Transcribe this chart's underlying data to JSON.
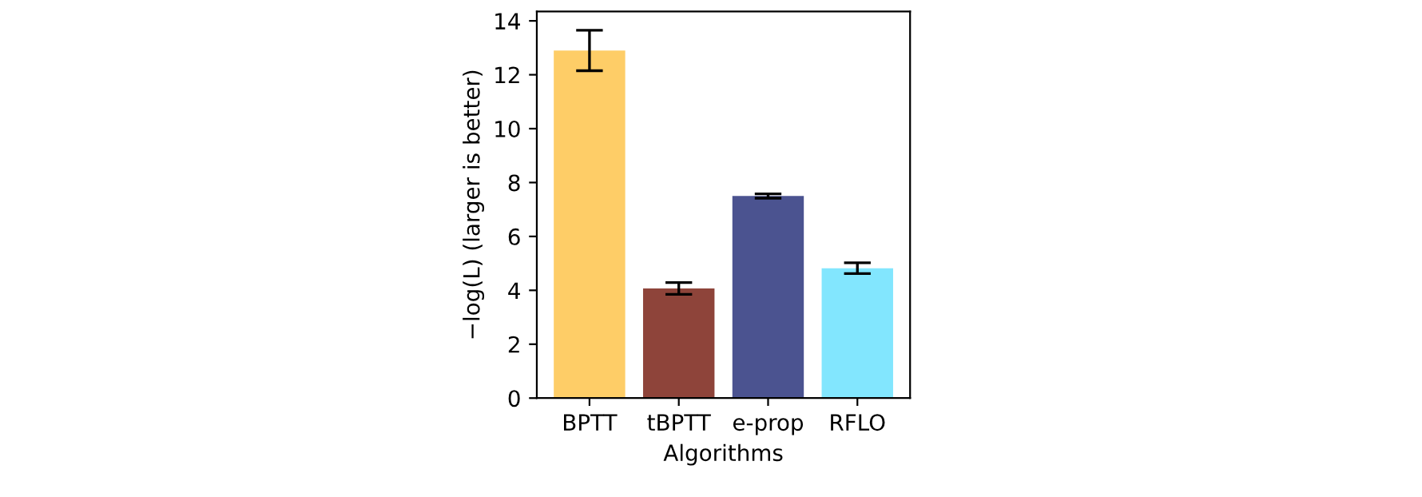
{
  "chart_data": {
    "type": "bar",
    "xlabel": "Algorithms",
    "ylabel": "−log(L) (larger is better)",
    "categories": [
      "BPTT",
      "tBPTT",
      "e-prop",
      "RFLO"
    ],
    "values": [
      12.9,
      4.07,
      7.5,
      4.82
    ],
    "errors": [
      0.75,
      0.22,
      0.08,
      0.2
    ],
    "colors": [
      "#fecd67",
      "#8e443a",
      "#4b5390",
      "#82e6fe"
    ],
    "ylim": [
      0,
      14.35
    ],
    "yticks": [
      0,
      2,
      4,
      6,
      8,
      10,
      12,
      14
    ],
    "grid": false,
    "legend": false
  }
}
